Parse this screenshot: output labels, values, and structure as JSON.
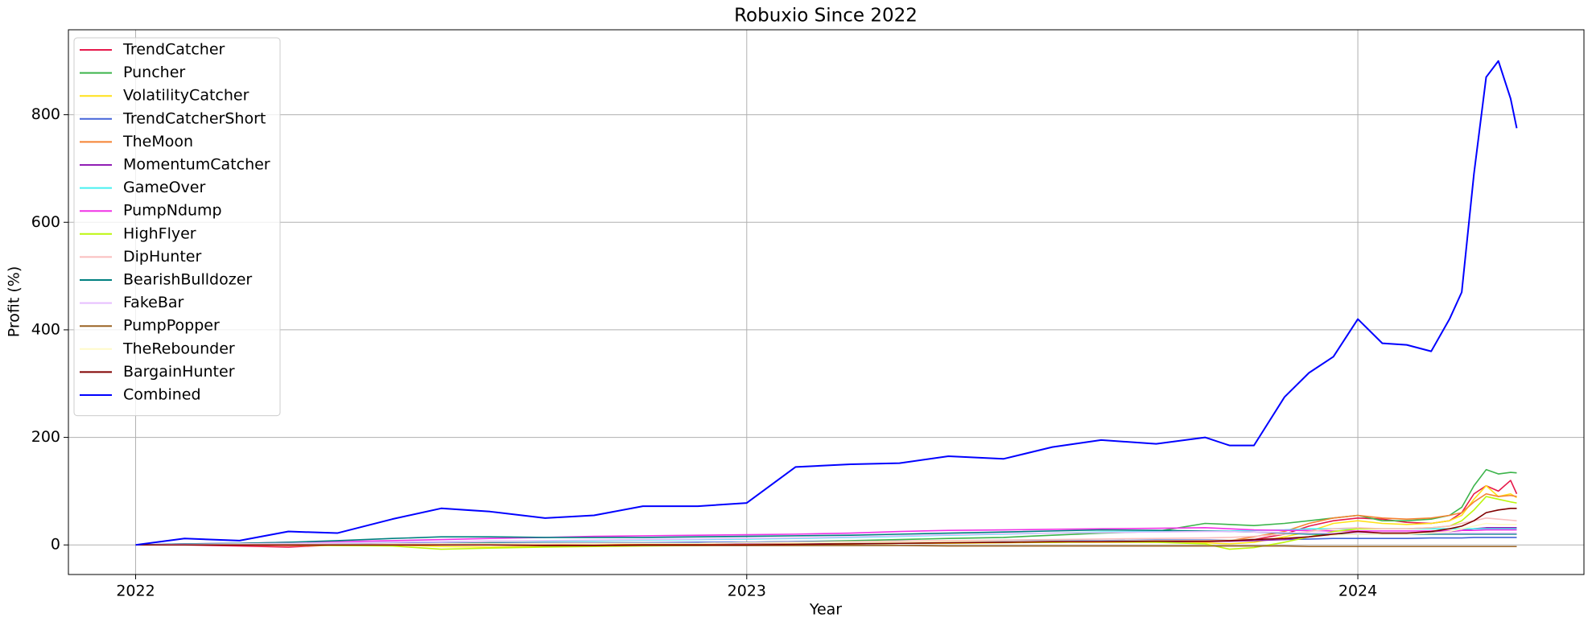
{
  "chart_data": {
    "type": "line",
    "title": "Robuxio Since 2022",
    "x_label": "Year",
    "y_label": "Profit (%)",
    "x": [
      2022.0,
      2022.08,
      2022.17,
      2022.25,
      2022.33,
      2022.42,
      2022.5,
      2022.58,
      2022.67,
      2022.75,
      2022.83,
      2022.92,
      2023.0,
      2023.08,
      2023.17,
      2023.25,
      2023.33,
      2023.42,
      2023.5,
      2023.58,
      2023.67,
      2023.75,
      2023.79,
      2023.83,
      2023.88,
      2023.92,
      2023.96,
      2024.0,
      2024.04,
      2024.08,
      2024.12,
      2024.15,
      2024.17,
      2024.19,
      2024.21,
      2024.23,
      2024.25,
      2024.26
    ],
    "xlim": [
      2021.89,
      2024.37
    ],
    "xticks": [
      2022,
      2023,
      2024
    ],
    "ylim": [
      -55,
      958
    ],
    "yticks": [
      0,
      200,
      400,
      600,
      800
    ],
    "grid": true,
    "legend": "upper left",
    "series": [
      {
        "name": "TrendCatcher",
        "color": "#e6194b",
        "values": [
          0,
          0,
          -2,
          -4,
          0,
          1,
          1,
          1,
          0,
          0,
          0,
          0,
          1,
          2,
          3,
          3,
          4,
          5,
          5,
          6,
          6,
          6,
          7,
          10,
          20,
          35,
          45,
          50,
          48,
          42,
          40,
          45,
          60,
          95,
          110,
          100,
          120,
          95
        ]
      },
      {
        "name": "Puncher",
        "color": "#3cb44b",
        "values": [
          0,
          1,
          2,
          2,
          3,
          3,
          3,
          4,
          4,
          4,
          4,
          4,
          5,
          6,
          8,
          10,
          12,
          14,
          18,
          22,
          25,
          40,
          38,
          36,
          40,
          45,
          50,
          55,
          45,
          45,
          48,
          55,
          70,
          110,
          140,
          132,
          135,
          134
        ]
      },
      {
        "name": "VolatilityCatcher",
        "color": "#ffe119",
        "values": [
          0,
          0,
          0,
          1,
          1,
          0,
          -3,
          -4,
          -3,
          -2,
          -1,
          0,
          0,
          1,
          2,
          3,
          3,
          4,
          5,
          5,
          5,
          4,
          2,
          5,
          15,
          25,
          40,
          45,
          40,
          38,
          40,
          45,
          55,
          85,
          110,
          90,
          95,
          88
        ]
      },
      {
        "name": "TrendCatcherShort",
        "color": "#4363d8",
        "values": [
          0,
          1,
          1,
          2,
          2,
          3,
          3,
          3,
          4,
          4,
          4,
          5,
          5,
          6,
          6,
          7,
          7,
          8,
          8,
          8,
          9,
          9,
          9,
          10,
          10,
          11,
          12,
          12,
          12,
          12,
          13,
          13,
          13,
          14,
          14,
          14,
          14,
          14
        ]
      },
      {
        "name": "TheMoon",
        "color": "#f58231",
        "values": [
          0,
          0,
          0,
          -1,
          -1,
          -1,
          0,
          0,
          0,
          0,
          1,
          1,
          1,
          2,
          2,
          3,
          4,
          5,
          5,
          6,
          6,
          6,
          8,
          15,
          25,
          40,
          50,
          55,
          50,
          48,
          50,
          55,
          60,
          80,
          95,
          90,
          92,
          90
        ]
      },
      {
        "name": "MomentumCatcher",
        "color": "#911eb4",
        "values": [
          0,
          0,
          1,
          1,
          1,
          2,
          2,
          2,
          3,
          3,
          3,
          3,
          3,
          4,
          4,
          5,
          5,
          5,
          6,
          6,
          6,
          7,
          7,
          8,
          10,
          15,
          20,
          22,
          22,
          22,
          23,
          25,
          27,
          30,
          32,
          32,
          32,
          32
        ]
      },
      {
        "name": "GameOver",
        "color": "#46f0f0",
        "values": [
          0,
          1,
          2,
          3,
          4,
          5,
          6,
          7,
          7,
          8,
          9,
          10,
          11,
          12,
          14,
          16,
          18,
          20,
          22,
          24,
          25,
          26,
          26,
          27,
          28,
          30,
          30,
          30,
          30,
          30,
          30,
          30,
          30,
          30,
          30,
          30,
          30,
          30
        ]
      },
      {
        "name": "PumpNdump",
        "color": "#f032e6",
        "values": [
          0,
          2,
          3,
          5,
          6,
          8,
          10,
          12,
          14,
          16,
          17,
          18,
          19,
          20,
          22,
          25,
          27,
          28,
          29,
          30,
          31,
          32,
          30,
          28,
          27,
          27,
          26,
          26,
          26,
          26,
          26,
          26,
          27,
          27,
          28,
          28,
          28,
          28
        ]
      },
      {
        "name": "HighFlyer",
        "color": "#bcf60c",
        "values": [
          0,
          0,
          0,
          0,
          -1,
          -2,
          -8,
          -6,
          -4,
          -3,
          -2,
          -1,
          0,
          1,
          2,
          3,
          4,
          5,
          5,
          6,
          5,
          2,
          -8,
          -5,
          5,
          15,
          25,
          30,
          30,
          30,
          32,
          35,
          45,
          65,
          90,
          85,
          80,
          78
        ]
      },
      {
        "name": "DipHunter",
        "color": "#fabebe",
        "values": [
          0,
          0,
          0,
          1,
          1,
          1,
          2,
          2,
          2,
          3,
          3,
          3,
          4,
          5,
          6,
          7,
          8,
          9,
          10,
          11,
          12,
          13,
          14,
          16,
          20,
          25,
          30,
          32,
          30,
          30,
          32,
          35,
          40,
          45,
          50,
          48,
          46,
          45
        ]
      },
      {
        "name": "BearishBulldozer",
        "color": "#008080",
        "values": [
          0,
          2,
          3,
          5,
          8,
          12,
          15,
          15,
          14,
          14,
          14,
          15,
          16,
          17,
          18,
          20,
          22,
          24,
          26,
          28,
          27,
          26,
          25,
          24,
          22,
          20,
          20,
          20,
          20,
          20,
          20,
          20,
          20,
          20,
          20,
          20,
          20,
          20
        ]
      },
      {
        "name": "FakeBar",
        "color": "#e6beff",
        "values": [
          0,
          1,
          2,
          3,
          4,
          5,
          6,
          7,
          8,
          9,
          10,
          11,
          12,
          13,
          15,
          17,
          19,
          21,
          22,
          23,
          24,
          25,
          25,
          24,
          23,
          22,
          22,
          22,
          22,
          22,
          22,
          22,
          22,
          22,
          22,
          22,
          22,
          22
        ]
      },
      {
        "name": "PumpPopper",
        "color": "#9a6324",
        "values": [
          0,
          0,
          0,
          0,
          0,
          0,
          0,
          0,
          -1,
          -1,
          -1,
          -1,
          -1,
          -1,
          -1,
          -1,
          -2,
          -2,
          -2,
          -2,
          -2,
          -2,
          -2,
          -2,
          -2,
          -3,
          -3,
          -3,
          -3,
          -3,
          -3,
          -3,
          -3,
          -3,
          -3,
          -3,
          -3,
          -3
        ]
      },
      {
        "name": "TheRebounder",
        "color": "#fffac8",
        "values": [
          0,
          0,
          1,
          1,
          1,
          2,
          2,
          2,
          3,
          3,
          3,
          3,
          4,
          4,
          5,
          5,
          6,
          6,
          7,
          7,
          8,
          8,
          9,
          10,
          12,
          15,
          18,
          20,
          20,
          20,
          22,
          25,
          30,
          35,
          40,
          38,
          38,
          38
        ]
      },
      {
        "name": "BargainHunter",
        "color": "#800000",
        "values": [
          0,
          0,
          0,
          0,
          0,
          0,
          0,
          0,
          -1,
          -1,
          0,
          0,
          0,
          1,
          2,
          3,
          4,
          5,
          6,
          6,
          7,
          7,
          8,
          10,
          12,
          15,
          20,
          25,
          22,
          22,
          25,
          30,
          35,
          45,
          60,
          65,
          68,
          68
        ]
      },
      {
        "name": "Combined",
        "color": "#0000ff",
        "values": [
          0,
          12,
          8,
          25,
          22,
          48,
          68,
          62,
          50,
          55,
          72,
          72,
          78,
          145,
          150,
          152,
          165,
          160,
          182,
          195,
          188,
          200,
          185,
          185,
          275,
          320,
          350,
          420,
          375,
          372,
          360,
          420,
          470,
          690,
          870,
          900,
          830,
          775
        ]
      }
    ]
  }
}
